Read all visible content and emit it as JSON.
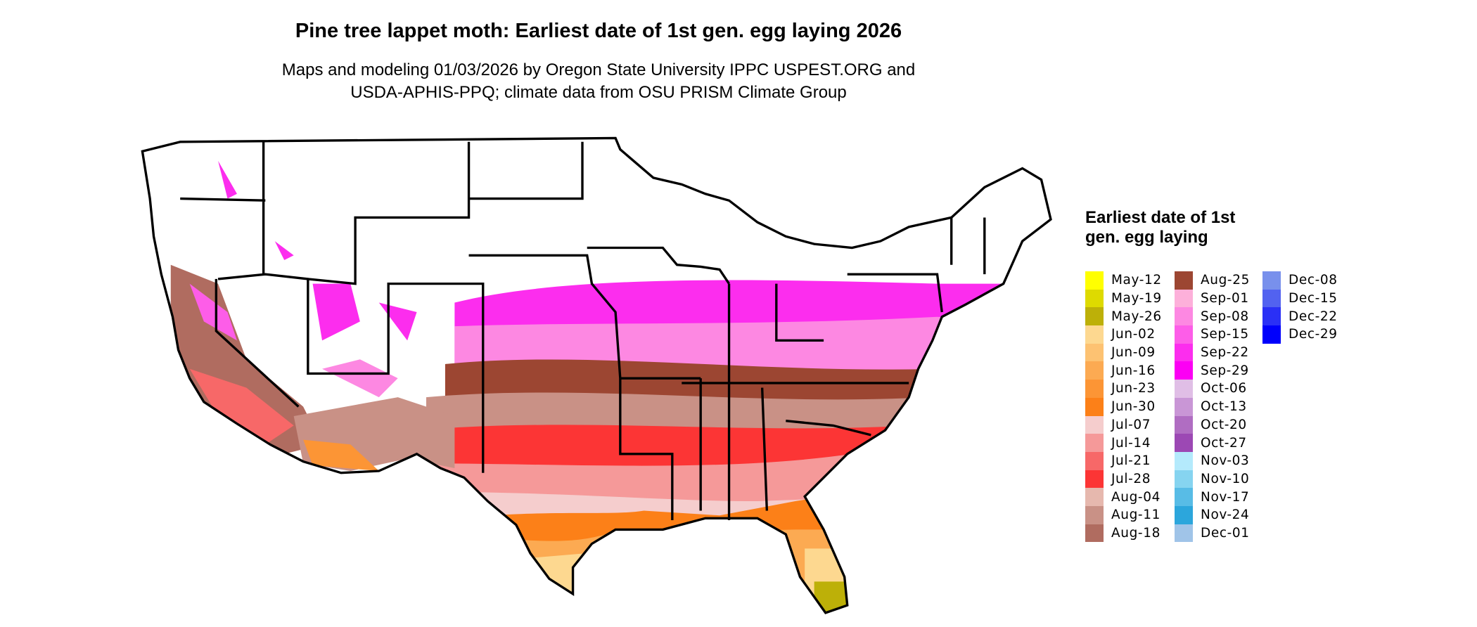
{
  "title": "Pine tree lappet moth: Earliest date of 1st gen. egg laying 2026",
  "subtitle_line1": "Maps and modeling 01/03/2026 by Oregon State University IPPC USPEST.ORG and",
  "subtitle_line2": "USDA-APHIS-PPQ; climate data from OSU PRISM Climate Group",
  "legend": {
    "title": "Earliest date of 1st gen. egg laying",
    "columns": [
      [
        {
          "label": "May-12",
          "color": "#FFFF00"
        },
        {
          "label": "May-19",
          "color": "#DEDA00"
        },
        {
          "label": "May-26",
          "color": "#BDB008"
        },
        {
          "label": "Jun-02",
          "color": "#FDD890"
        },
        {
          "label": "Jun-09",
          "color": "#FDC272"
        },
        {
          "label": "Jun-16",
          "color": "#FCAA52"
        },
        {
          "label": "Jun-23",
          "color": "#FC9535"
        },
        {
          "label": "Jun-30",
          "color": "#FC8018"
        },
        {
          "label": "Jul-07",
          "color": "#F5CDCD"
        },
        {
          "label": "Jul-14",
          "color": "#F59999"
        },
        {
          "label": "Jul-21",
          "color": "#F76868"
        },
        {
          "label": "Jul-28",
          "color": "#FC3535"
        },
        {
          "label": "Aug-04",
          "color": "#E6B8AE"
        },
        {
          "label": "Aug-11",
          "color": "#C99186"
        },
        {
          "label": "Aug-18",
          "color": "#B06C60"
        }
      ],
      [
        {
          "label": "Aug-25",
          "color": "#9C4632"
        },
        {
          "label": "Sep-01",
          "color": "#FDB0DA"
        },
        {
          "label": "Sep-08",
          "color": "#FD88E2"
        },
        {
          "label": "Sep-15",
          "color": "#FD5DE8"
        },
        {
          "label": "Sep-22",
          "color": "#FC2DEE"
        },
        {
          "label": "Sep-29",
          "color": "#FC00F4"
        },
        {
          "label": "Oct-06",
          "color": "#E0BEE6"
        },
        {
          "label": "Oct-13",
          "color": "#C996D6"
        },
        {
          "label": "Oct-20",
          "color": "#B06DC2"
        },
        {
          "label": "Oct-27",
          "color": "#9C48B4"
        },
        {
          "label": "Nov-03",
          "color": "#B4EAFC"
        },
        {
          "label": "Nov-10",
          "color": "#86D4F0"
        },
        {
          "label": "Nov-17",
          "color": "#58BCE6"
        },
        {
          "label": "Nov-24",
          "color": "#2CA6DC"
        },
        {
          "label": "Dec-01",
          "color": "#A0C4E8"
        }
      ],
      [
        {
          "label": "Dec-08",
          "color": "#7890EC"
        },
        {
          "label": "Dec-15",
          "color": "#5262F0"
        },
        {
          "label": "Dec-22",
          "color": "#2A30F6"
        },
        {
          "label": "Dec-29",
          "color": "#0000FC"
        }
      ]
    ]
  }
}
